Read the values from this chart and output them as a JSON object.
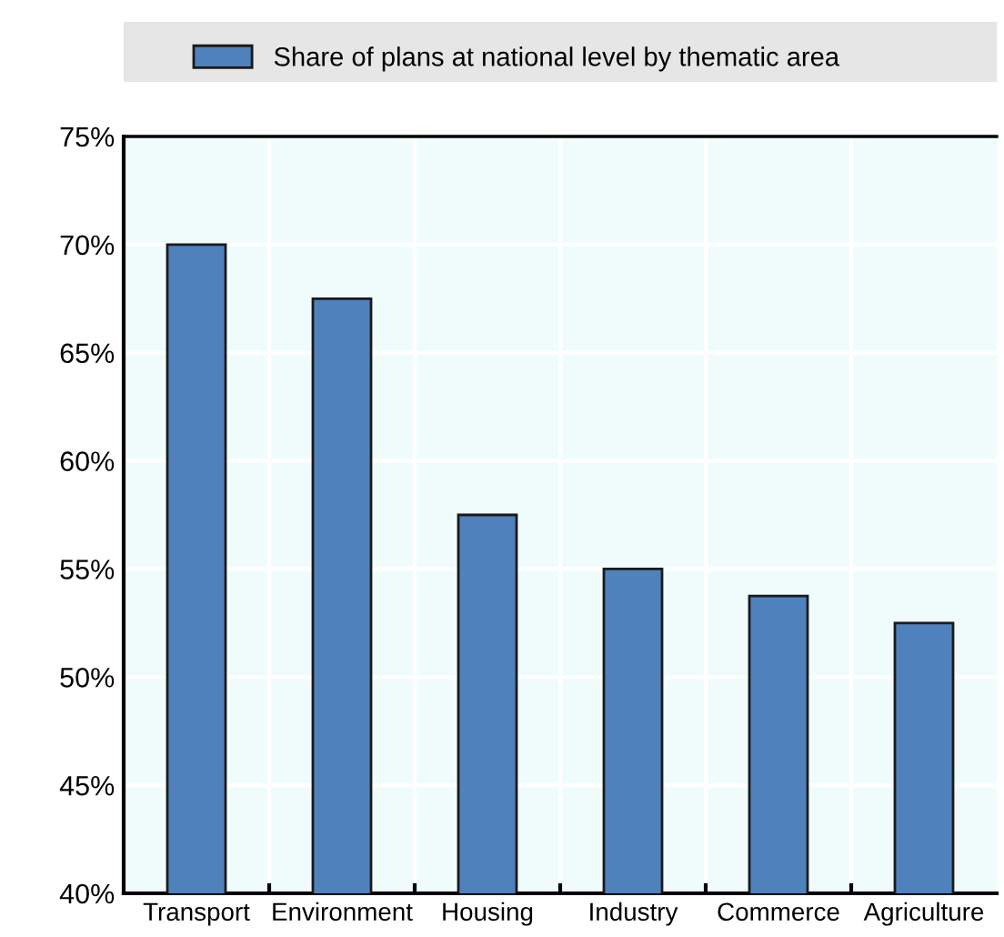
{
  "chart_data": {
    "type": "bar",
    "categories": [
      "Transport",
      "Environment",
      "Housing",
      "Industry",
      "Commerce",
      "Agriculture"
    ],
    "series": [
      {
        "name": "Share of plans at national level by thematic area",
        "color": "#4f81bd",
        "values": [
          70,
          67.5,
          57.5,
          55,
          53.75,
          52.5
        ]
      }
    ],
    "ylim": [
      40,
      75
    ],
    "yticks": [
      {
        "value": 40,
        "label": "40%"
      },
      {
        "value": 45,
        "label": "45%"
      },
      {
        "value": 50,
        "label": "50%"
      },
      {
        "value": 55,
        "label": "55%"
      },
      {
        "value": 60,
        "label": "60%"
      },
      {
        "value": 65,
        "label": "65%"
      },
      {
        "value": 70,
        "label": "70%"
      },
      {
        "value": 75,
        "label": "75%"
      }
    ],
    "grid": true,
    "legend": "top"
  }
}
